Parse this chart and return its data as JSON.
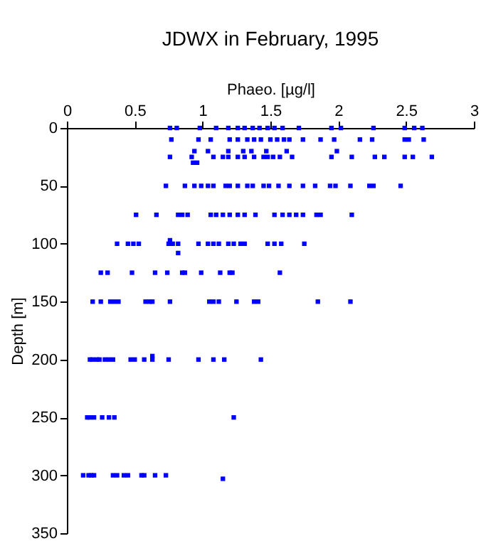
{
  "chart_data": {
    "type": "scatter",
    "title": "JDWX in February, 1995",
    "xlabel": "Phaeo. [µg/l]",
    "ylabel": "Depth [m]",
    "xlim": [
      0,
      3
    ],
    "xticks": [
      0,
      0.5,
      1,
      1.5,
      2,
      2.5,
      3
    ],
    "ylim": [
      350,
      0
    ],
    "yticks": [
      0,
      50,
      100,
      150,
      200,
      250,
      300,
      350
    ],
    "grid": false,
    "legend": false,
    "marker": "square",
    "series": [
      {
        "color": "#0000ff",
        "x": [
          0.76,
          0.81,
          0.98,
          1.1,
          1.19,
          1.26,
          1.31,
          1.37,
          1.42,
          1.48,
          1.53,
          1.59,
          1.71,
          1.95,
          2.02,
          2.26,
          2.49,
          2.56,
          2.62,
          0.77,
          0.97,
          1.06,
          1.2,
          1.26,
          1.33,
          1.38,
          1.43,
          1.5,
          1.55,
          1.6,
          1.64,
          1.74,
          1.87,
          1.97,
          2.16,
          2.25,
          2.49,
          2.52,
          2.63,
          0.94,
          1.04,
          1.19,
          1.3,
          1.36,
          1.47,
          1.62,
          1.99,
          0.76,
          0.92,
          1.08,
          1.15,
          1.19,
          1.26,
          1.31,
          1.38,
          1.45,
          1.48,
          1.52,
          1.57,
          1.66,
          1.95,
          2.1,
          2.27,
          2.34,
          2.49,
          2.55,
          2.69,
          0.93,
          0.96,
          0.73,
          0.87,
          0.94,
          0.99,
          1.04,
          1.08,
          1.17,
          1.2,
          1.26,
          1.33,
          1.37,
          1.45,
          1.49,
          1.56,
          1.64,
          1.74,
          1.83,
          1.94,
          1.98,
          2.09,
          2.23,
          2.26,
          2.46,
          0.51,
          0.66,
          0.82,
          0.85,
          0.89,
          1.06,
          1.1,
          1.15,
          1.2,
          1.26,
          1.31,
          1.39,
          1.53,
          1.59,
          1.64,
          1.69,
          1.74,
          1.84,
          1.87,
          2.1,
          0.37,
          0.45,
          0.49,
          0.53,
          0.75,
          0.78,
          0.82,
          0.97,
          1.04,
          1.08,
          1.12,
          1.19,
          1.23,
          1.28,
          1.31,
          1.48,
          1.53,
          1.58,
          1.75,
          0.76,
          0.82,
          0.25,
          0.3,
          0.48,
          0.65,
          0.74,
          0.85,
          0.87,
          0.99,
          1.13,
          1.2,
          1.22,
          1.57,
          0.19,
          0.25,
          0.32,
          0.35,
          0.38,
          0.58,
          0.61,
          0.63,
          0.76,
          1.05,
          1.08,
          1.12,
          1.25,
          1.38,
          1.41,
          1.85,
          2.09,
          0.17,
          0.19,
          0.22,
          0.24,
          0.28,
          0.31,
          0.34,
          0.47,
          0.5,
          0.57,
          0.63,
          0.63,
          0.75,
          0.97,
          1.08,
          1.16,
          1.43,
          0.15,
          0.17,
          0.2,
          0.26,
          0.31,
          0.35,
          1.23,
          0.12,
          0.16,
          0.18,
          0.2,
          0.34,
          0.37,
          0.42,
          0.45,
          0.55,
          0.57,
          0.65,
          0.73,
          1.15
        ],
        "values": [
          0,
          0,
          0,
          0,
          0,
          0,
          0,
          0,
          0,
          0,
          0,
          0,
          0,
          0,
          0,
          0,
          0,
          0,
          0,
          10,
          10,
          10,
          10,
          10,
          10,
          10,
          10,
          10,
          10,
          10,
          10,
          10,
          10,
          10,
          10,
          10,
          10,
          10,
          10,
          20,
          20,
          20,
          20,
          20,
          20,
          20,
          20,
          25,
          25,
          25,
          25,
          25,
          25,
          25,
          25,
          25,
          25,
          25,
          25,
          25,
          25,
          25,
          25,
          25,
          25,
          25,
          25,
          30,
          30,
          50,
          50,
          50,
          50,
          50,
          50,
          50,
          50,
          50,
          50,
          50,
          50,
          50,
          50,
          50,
          50,
          50,
          50,
          50,
          50,
          50,
          50,
          50,
          75,
          75,
          75,
          75,
          75,
          75,
          75,
          75,
          75,
          75,
          75,
          75,
          75,
          75,
          75,
          75,
          75,
          75,
          75,
          75,
          100,
          100,
          100,
          100,
          100,
          100,
          100,
          100,
          100,
          100,
          100,
          100,
          100,
          100,
          100,
          100,
          100,
          100,
          100,
          97,
          108,
          125,
          125,
          125,
          125,
          125,
          125,
          125,
          125,
          125,
          125,
          125,
          125,
          150,
          150,
          150,
          150,
          150,
          150,
          150,
          150,
          150,
          150,
          150,
          150,
          150,
          150,
          150,
          150,
          150,
          200,
          200,
          200,
          200,
          200,
          200,
          200,
          200,
          200,
          200,
          200,
          197,
          200,
          200,
          200,
          200,
          200,
          250,
          250,
          250,
          250,
          250,
          250,
          250,
          300,
          300,
          300,
          300,
          300,
          300,
          300,
          300,
          300,
          300,
          300,
          300,
          303
        ]
      }
    ]
  }
}
